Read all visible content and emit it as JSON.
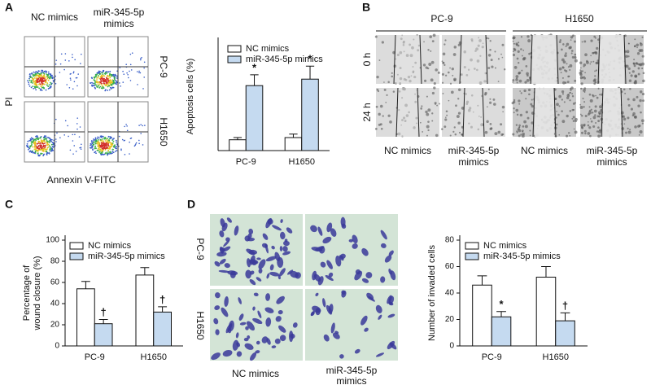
{
  "panels": {
    "a": "A",
    "b": "B",
    "c": "C",
    "d": "D"
  },
  "flow": {
    "columns": [
      [
        "NC mimics"
      ],
      [
        "miR-345-5p",
        "mimics"
      ]
    ],
    "rows": [
      "PC-9",
      "H1650"
    ],
    "y_label": "PI",
    "x_label": "Annexin V-FITC"
  },
  "wound": {
    "cell_lines": [
      "PC-9",
      "H1650"
    ],
    "times": [
      "0 h",
      "24 h"
    ],
    "conditions": [
      [
        "NC mimics"
      ],
      [
        "miR-345-5p",
        "mimics"
      ],
      [
        "NC mimics"
      ],
      [
        "miR-345-5p",
        "mimics"
      ]
    ]
  },
  "invasion": {
    "rows": [
      "PC-9",
      "H1650"
    ],
    "conditions": [
      [
        "NC mimics"
      ],
      [
        "miR-345-5p",
        "mimics"
      ]
    ]
  },
  "chart_data": [
    {
      "type": "bar",
      "ylabel": [
        "Apoptosis cells (%)"
      ],
      "categories": [
        "PC-9",
        "H1650"
      ],
      "ylim": [
        0,
        25
      ],
      "series": [
        {
          "name": "NC mimics",
          "color": "#ffffff",
          "values": [
            2.5,
            3.0
          ],
          "errors": [
            0.5,
            0.8
          ]
        },
        {
          "name": "miR-345-5p mimics",
          "color": "#c5daf0",
          "values": [
            15,
            16.5
          ],
          "errors": [
            2.5,
            3
          ],
          "significance": [
            "*",
            "*"
          ]
        }
      ]
    },
    {
      "type": "bar",
      "ylabel": [
        "Percentage of",
        "wound closure (%)"
      ],
      "categories": [
        "PC-9",
        "H1650"
      ],
      "ylim": [
        0,
        100
      ],
      "yticks": [
        0,
        20,
        40,
        60,
        80,
        100
      ],
      "series": [
        {
          "name": "NC mimics",
          "color": "#ffffff",
          "values": [
            54,
            67
          ],
          "errors": [
            7,
            7
          ]
        },
        {
          "name": "miR-345-5p mimics",
          "color": "#c5daf0",
          "values": [
            21,
            32
          ],
          "errors": [
            4,
            5
          ],
          "significance": [
            "†",
            "†"
          ]
        }
      ]
    },
    {
      "type": "bar",
      "ylabel": [
        "Number of invaded cells"
      ],
      "categories": [
        "PC-9",
        "H1650"
      ],
      "ylim": [
        0,
        80
      ],
      "yticks": [
        0,
        20,
        40,
        60,
        80
      ],
      "series": [
        {
          "name": "NC mimics",
          "color": "#ffffff",
          "values": [
            46,
            52
          ],
          "errors": [
            7,
            8
          ]
        },
        {
          "name": "miR-345-5p mimics",
          "color": "#c5daf0",
          "values": [
            22,
            19
          ],
          "errors": [
            4,
            6
          ],
          "significance": [
            "*",
            "†"
          ]
        }
      ]
    }
  ]
}
